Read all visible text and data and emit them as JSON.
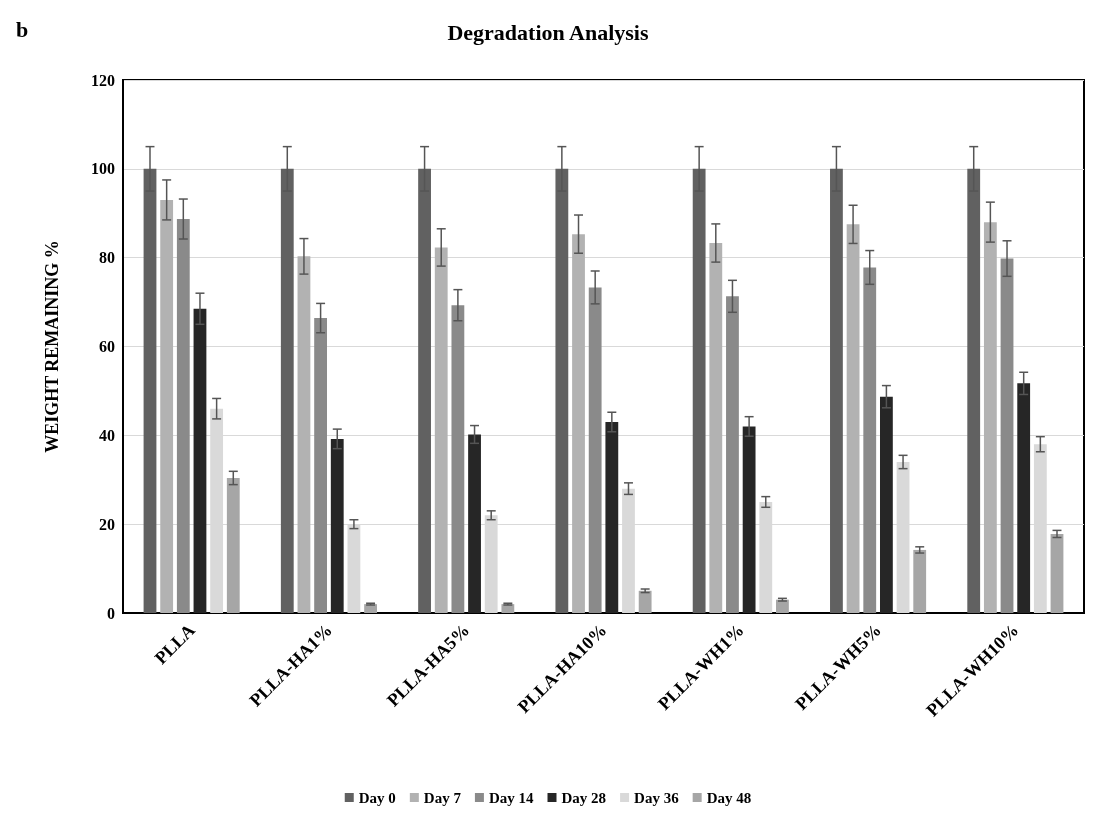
{
  "chart_data": {
    "type": "bar",
    "title": "Degradation Analysis",
    "ylabel": "WEIGHT REMAINING %",
    "annotations": [
      "b"
    ],
    "categories": [
      "PLLA",
      "PLLA-HA1%",
      "PLLA-HA5%",
      "PLLA-HA10%",
      "PLLA-WH1%",
      "PLLA-WH5%",
      "PLLA-WH10%"
    ],
    "series": [
      {
        "name": "Day 0",
        "color": "#616161",
        "values": [
          100,
          100,
          100,
          100,
          100,
          100,
          100
        ],
        "errors": [
          5,
          5,
          5,
          5,
          5,
          5,
          5
        ]
      },
      {
        "name": "Day 7",
        "color": "#b2b2b2",
        "values": [
          93,
          80.3,
          82.3,
          85.3,
          83.3,
          87.5,
          88
        ],
        "errors": [
          4.5,
          4,
          4.2,
          4.3,
          4.3,
          4.3,
          4.5
        ]
      },
      {
        "name": "Day 14",
        "color": "#8a8a8a",
        "values": [
          88.7,
          66.4,
          69.3,
          73.3,
          71.3,
          77.8,
          79.8
        ],
        "errors": [
          4.5,
          3.3,
          3.5,
          3.7,
          3.6,
          3.8,
          4
        ]
      },
      {
        "name": "Day 28",
        "color": "#262626",
        "values": [
          68.5,
          39.2,
          40.2,
          43,
          42,
          48.7,
          51.7
        ],
        "errors": [
          3.5,
          2.2,
          2,
          2.2,
          2.2,
          2.5,
          2.5
        ]
      },
      {
        "name": "Day 36",
        "color": "#d9d9d9",
        "values": [
          46,
          20,
          22,
          28,
          25,
          34,
          38
        ],
        "errors": [
          2.3,
          1,
          1,
          1.3,
          1.2,
          1.5,
          1.7
        ]
      },
      {
        "name": "Day 48",
        "color": "#a6a6a6",
        "values": [
          30.4,
          2,
          2,
          5,
          3,
          14.2,
          17.8
        ],
        "errors": [
          1.5,
          0.2,
          0.2,
          0.4,
          0.3,
          0.7,
          0.8
        ]
      }
    ],
    "ylim": [
      0,
      120
    ],
    "yticks": [
      0,
      20,
      40,
      60,
      80,
      100,
      120
    ],
    "grid": "y",
    "legend": "bottom"
  }
}
